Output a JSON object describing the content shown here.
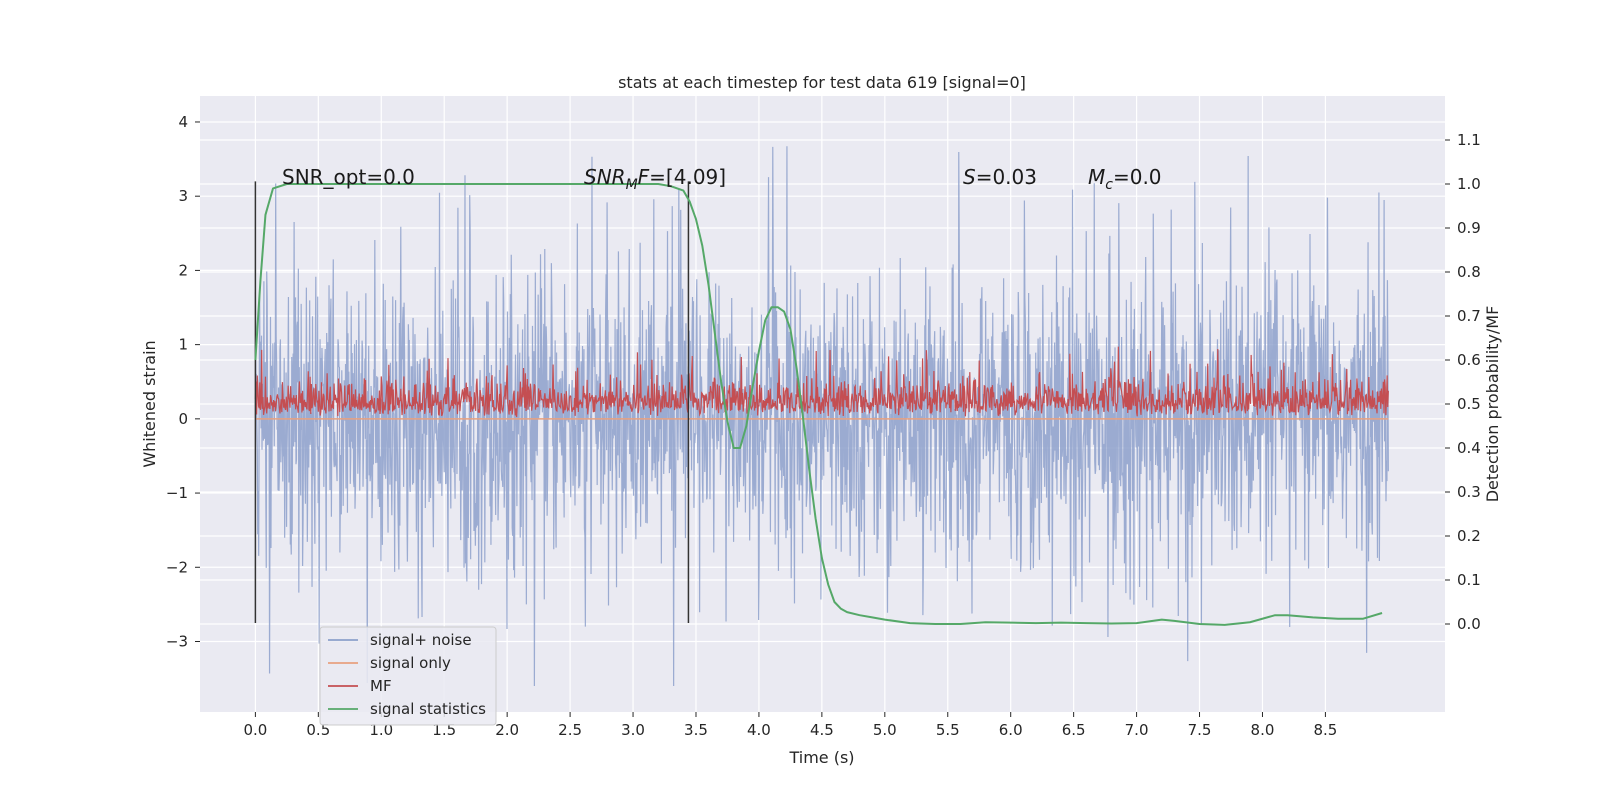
{
  "chart_data": {
    "type": "line",
    "title": "stats at each timestep for test data 619 [signal=0]",
    "xlabel": "Time (s)",
    "ylabel_left": "Whitened strain",
    "ylabel_right": "Detection probability/MF",
    "xlim": [
      -0.44,
      9.45
    ],
    "ylim_left": [
      -3.95,
      4.35
    ],
    "ylim_right": [
      -0.2,
      1.2
    ],
    "x_ticks": [
      0.0,
      0.5,
      1.0,
      1.5,
      2.0,
      2.5,
      3.0,
      3.5,
      4.0,
      4.5,
      5.0,
      5.5,
      6.0,
      6.5,
      7.0,
      7.5,
      8.0,
      8.5
    ],
    "x_tick_labels": [
      "0.0",
      "0.5",
      "1.0",
      "1.5",
      "2.0",
      "2.5",
      "3.0",
      "3.5",
      "4.0",
      "4.5",
      "5.0",
      "5.5",
      "6.0",
      "6.5",
      "7.0",
      "7.5",
      "8.0",
      "8.5"
    ],
    "y_left_ticks": [
      -3,
      -2,
      -1,
      0,
      1,
      2,
      3,
      4
    ],
    "y_left_tick_labels": [
      "−3",
      "−2",
      "−1",
      "0",
      "1",
      "2",
      "3",
      "4"
    ],
    "y_right_ticks": [
      0.0,
      0.1,
      0.2,
      0.3,
      0.4,
      0.5,
      0.6,
      0.7,
      0.8,
      0.9,
      1.0,
      1.1
    ],
    "y_right_tick_labels": [
      "0.0",
      "0.1",
      "0.2",
      "0.3",
      "0.4",
      "0.5",
      "0.6",
      "0.7",
      "0.8",
      "0.9",
      "1.0",
      "1.1"
    ],
    "grid": true,
    "legend_position": "bottom-left",
    "series": [
      {
        "name": "signal+ noise",
        "axis": "left",
        "color": "#8da0cb",
        "t_range": [
          0.0,
          9.0
        ],
        "envelope": {
          "typical_max": 2.4,
          "typical_min": -2.4,
          "peak_max": 4.02,
          "peak_min": -3.6
        }
      },
      {
        "name": "signal only",
        "axis": "left",
        "color": "#e8a07f",
        "x": [
          0.0,
          9.0
        ],
        "y": [
          0.0,
          0.0
        ]
      },
      {
        "name": "MF",
        "axis": "left",
        "color": "#c44e52",
        "t_range": [
          0.0,
          9.0
        ],
        "envelope": {
          "baseline": 0.02,
          "typical_max": 0.6,
          "peak_max": 1.0
        }
      },
      {
        "name": "signal statistics",
        "axis": "right",
        "color": "#55a868",
        "x": [
          0.0,
          0.04,
          0.08,
          0.14,
          0.25,
          0.5,
          1.0,
          1.5,
          2.0,
          2.5,
          3.0,
          3.2,
          3.3,
          3.4,
          3.45,
          3.5,
          3.55,
          3.6,
          3.65,
          3.7,
          3.75,
          3.8,
          3.85,
          3.9,
          3.95,
          4.0,
          4.05,
          4.1,
          4.15,
          4.2,
          4.25,
          4.3,
          4.35,
          4.4,
          4.45,
          4.5,
          4.55,
          4.6,
          4.65,
          4.7,
          4.8,
          4.9,
          5.0,
          5.2,
          5.4,
          5.6,
          5.8,
          6.0,
          6.2,
          6.4,
          6.6,
          6.8,
          7.0,
          7.1,
          7.2,
          7.3,
          7.5,
          7.7,
          7.9,
          8.1,
          8.2,
          8.4,
          8.6,
          8.8,
          8.95
        ],
        "y": [
          0.6,
          0.78,
          0.93,
          0.99,
          1.0,
          1.0,
          1.0,
          1.0,
          1.0,
          1.0,
          1.0,
          1.0,
          0.995,
          0.985,
          0.96,
          0.92,
          0.86,
          0.77,
          0.66,
          0.55,
          0.46,
          0.4,
          0.4,
          0.45,
          0.54,
          0.62,
          0.69,
          0.72,
          0.72,
          0.71,
          0.67,
          0.58,
          0.47,
          0.35,
          0.24,
          0.15,
          0.09,
          0.05,
          0.035,
          0.027,
          0.02,
          0.015,
          0.01,
          0.002,
          0.0,
          0.0,
          0.004,
          0.003,
          0.002,
          0.003,
          0.002,
          0.001,
          0.002,
          0.006,
          0.01,
          0.007,
          0.0,
          -0.002,
          0.004,
          0.02,
          0.02,
          0.015,
          0.012,
          0.012,
          0.025
        ]
      }
    ],
    "vertical_markers": [
      {
        "x": 0.0,
        "y_range": [
          -2.75,
          3.2
        ]
      },
      {
        "x": 3.44,
        "y_range": [
          -2.75,
          3.2
        ]
      }
    ],
    "annotations": [
      {
        "id": "snr_opt",
        "text": "SNR_opt=0.0"
      },
      {
        "id": "snr_mf",
        "text": "=[4.09]",
        "prefix": "SNR",
        "sub": "M",
        "suffix": "F"
      },
      {
        "id": "s",
        "text": "=0.03",
        "prefix": "S"
      },
      {
        "id": "mc",
        "text": "=0.0",
        "prefix": "M",
        "sub": "c"
      }
    ]
  }
}
